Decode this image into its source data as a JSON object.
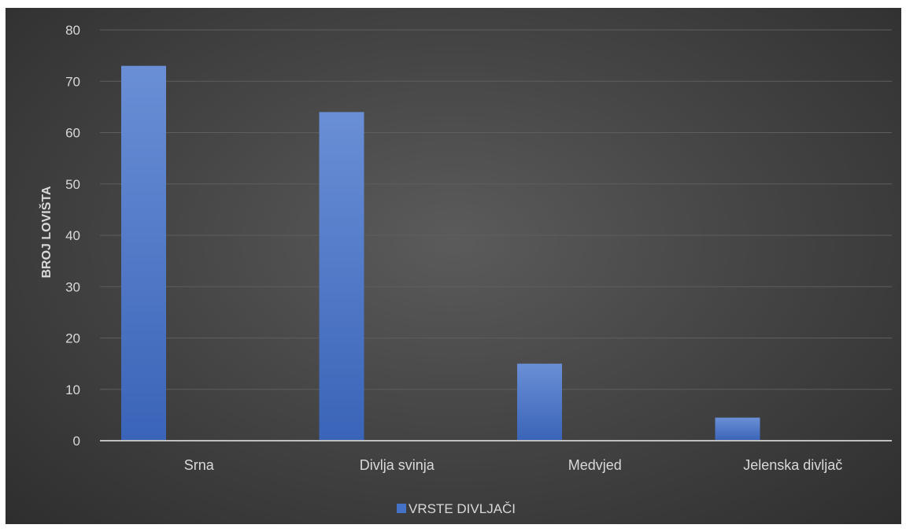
{
  "chart_data": {
    "type": "bar",
    "categories": [
      "Srna",
      "Divlja svinja",
      "Medvjed",
      "Jelenska divljač"
    ],
    "series": [
      {
        "name": "VRSTE DIVLJAČI",
        "values": [
          73,
          64,
          15,
          4.5
        ]
      }
    ],
    "title": "",
    "xlabel": "",
    "ylabel": "BROJ LOVIŠTA",
    "ylim": [
      0,
      80
    ],
    "yticks": [
      0,
      10,
      20,
      30,
      40,
      50,
      60,
      70,
      80
    ],
    "grid": true,
    "legend": "bottom",
    "colors": {
      "bar": "#4472c4",
      "bar_light": "#6a8fd6",
      "grid": "#5e5e5e",
      "baseline": "#bfbfbf",
      "text": "#d9d9d9"
    }
  }
}
